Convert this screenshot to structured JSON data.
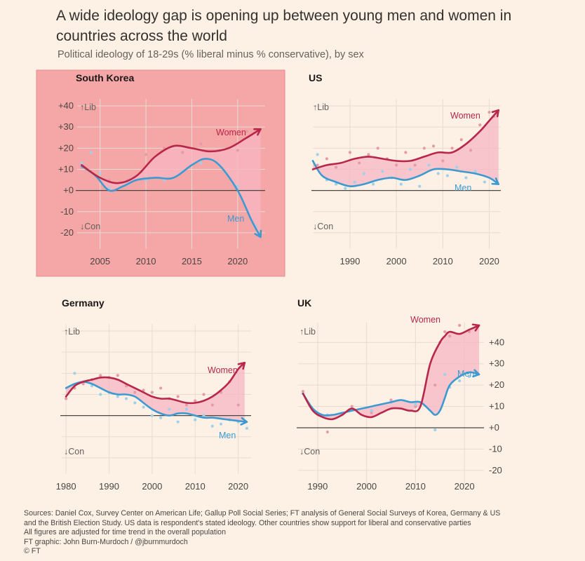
{
  "header": {
    "title": "A wide ideology gap is opening up between young men and women in countries across the world",
    "subtitle": "Political ideology of 18-29s (% liberal minus % conservative), by sex"
  },
  "colors": {
    "women": "#b8264a",
    "men": "#3d9ad1",
    "gap_fill": "#f7b6c3",
    "highlight_bg": "#f5a6a6",
    "highlight_border": "#e88a8a",
    "point_women": "#e59aa6",
    "point_men": "#9fd0ea"
  },
  "labels": {
    "lib": "↑Lib",
    "con": "↓Con",
    "women": "Women",
    "men": "Men"
  },
  "chart_data": [
    {
      "type": "line",
      "title": "South Korea",
      "highlight": true,
      "xlim": [
        2002.5,
        2023
      ],
      "ylim": [
        -25,
        42
      ],
      "xticks": [
        2005,
        2010,
        2015,
        2020
      ],
      "yticks": [
        40,
        30,
        20,
        10,
        0,
        -10,
        -20
      ],
      "ytick_labels": [
        "+40",
        "+30",
        "+20",
        "+10",
        "+0",
        "-10",
        "-20"
      ],
      "series": [
        {
          "name": "Women",
          "x": [
            2003,
            2005,
            2007,
            2009,
            2011,
            2013,
            2015,
            2017,
            2019,
            2021,
            2022.5
          ],
          "y": [
            12,
            6,
            3.5,
            7,
            16,
            21,
            20,
            18.5,
            20,
            25,
            29
          ]
        },
        {
          "name": "Men",
          "x": [
            2003,
            2004.5,
            2006,
            2007.5,
            2009,
            2011,
            2013,
            2015,
            2016.5,
            2018,
            2020,
            2021.5,
            2022.5
          ],
          "y": [
            11.5,
            7,
            0,
            2,
            5,
            6,
            6,
            12,
            15,
            12,
            0,
            -14,
            -22
          ]
        }
      ],
      "points": {
        "women": [
          [
            2003,
            11
          ],
          [
            2004,
            9
          ],
          [
            2006,
            5
          ],
          [
            2008,
            5
          ],
          [
            2009.5,
            9
          ],
          [
            2010,
            17
          ],
          [
            2012,
            20
          ],
          [
            2014,
            18
          ],
          [
            2016,
            22
          ],
          [
            2018,
            19
          ],
          [
            2020,
            19
          ],
          [
            2021,
            28
          ],
          [
            2022,
            29
          ]
        ],
        "men": [
          [
            2003,
            13
          ],
          [
            2004,
            18
          ],
          [
            2005,
            8
          ],
          [
            2006,
            1
          ],
          [
            2008,
            3
          ],
          [
            2010,
            5
          ],
          [
            2012,
            5
          ],
          [
            2014,
            9
          ],
          [
            2016,
            13
          ],
          [
            2018,
            12
          ],
          [
            2020,
            2
          ],
          [
            2022,
            -17
          ]
        ]
      }
    },
    {
      "type": "line",
      "title": "US",
      "highlight": false,
      "xlim": [
        1982,
        2022.5
      ],
      "ylim": [
        -25,
        42
      ],
      "xticks": [
        1990,
        2000,
        2010,
        2020
      ],
      "yticks": [
        40,
        30,
        20,
        10,
        0,
        -10,
        -20
      ],
      "ytick_labels": [],
      "series": [
        {
          "name": "Women",
          "x": [
            1982,
            1985,
            1988,
            1991,
            1994,
            1997,
            2000,
            2003,
            2006,
            2009,
            2012,
            2015,
            2018,
            2020,
            2022
          ],
          "y": [
            10,
            12,
            13,
            15,
            16,
            15,
            14,
            14,
            16,
            18,
            18,
            22,
            28,
            33,
            38
          ]
        },
        {
          "name": "Men",
          "x": [
            1982,
            1984,
            1987,
            1990,
            1993,
            1996,
            1999,
            2002,
            2005,
            2008,
            2011,
            2014,
            2017,
            2020,
            2022
          ],
          "y": [
            14,
            7,
            4,
            2,
            3,
            5,
            6,
            5,
            7,
            10,
            10,
            9,
            8,
            6,
            3
          ]
        }
      ],
      "points": {
        "women": [
          [
            1983,
            12
          ],
          [
            1985,
            15
          ],
          [
            1987,
            11
          ],
          [
            1990,
            18
          ],
          [
            1992,
            13
          ],
          [
            1994,
            17
          ],
          [
            1996,
            20
          ],
          [
            1998,
            15
          ],
          [
            2000,
            12
          ],
          [
            2002,
            18
          ],
          [
            2004,
            12
          ],
          [
            2006,
            20
          ],
          [
            2008,
            21
          ],
          [
            2010,
            14
          ],
          [
            2012,
            20
          ],
          [
            2014,
            24
          ],
          [
            2016,
            19
          ],
          [
            2018,
            31
          ],
          [
            2020,
            37
          ],
          [
            2021,
            35
          ]
        ],
        "men": [
          [
            1983,
            17
          ],
          [
            1985,
            5
          ],
          [
            1987,
            3
          ],
          [
            1989,
            1
          ],
          [
            1991,
            4
          ],
          [
            1993,
            8
          ],
          [
            1995,
            3
          ],
          [
            1997,
            9
          ],
          [
            1999,
            6
          ],
          [
            2001,
            3
          ],
          [
            2003,
            10
          ],
          [
            2005,
            2
          ],
          [
            2007,
            12
          ],
          [
            2009,
            8
          ],
          [
            2011,
            7
          ],
          [
            2013,
            11
          ],
          [
            2015,
            6
          ],
          [
            2017,
            9
          ],
          [
            2019,
            4
          ]
        ]
      }
    },
    {
      "type": "line",
      "title": "Germany",
      "highlight": false,
      "xlim": [
        1979,
        2023
      ],
      "ylim": [
        -25,
        42
      ],
      "xticks": [
        1980,
        1990,
        2000,
        2010,
        2020
      ],
      "yticks": [
        40,
        30,
        20,
        10,
        0,
        -10,
        -20
      ],
      "ytick_labels": [],
      "series": [
        {
          "name": "Women",
          "x": [
            1980,
            1982,
            1984,
            1986,
            1988,
            1990,
            1992,
            1994,
            1996,
            1998,
            2000,
            2002,
            2004,
            2006,
            2008,
            2010,
            2012,
            2014,
            2016,
            2018,
            2020,
            2021.5
          ],
          "y": [
            9,
            14,
            16,
            17,
            18,
            18,
            17,
            15,
            13,
            11,
            9,
            8,
            8,
            7,
            6,
            6,
            7,
            9,
            12,
            16,
            22,
            25
          ]
        },
        {
          "name": "Men",
          "x": [
            1980,
            1982,
            1984,
            1986,
            1988,
            1990,
            1992,
            1994,
            1996,
            1998,
            2000,
            2002,
            2004,
            2006,
            2008,
            2010,
            2012,
            2014,
            2016,
            2018,
            2020,
            2022
          ],
          "y": [
            13,
            15,
            16,
            15,
            13,
            11,
            10,
            10,
            9,
            6,
            3,
            1,
            0,
            1,
            1,
            0,
            -1,
            -1,
            -1.5,
            -2,
            -2.5,
            -3
          ]
        }
      ],
      "points": {
        "women": [
          [
            1980,
            8
          ],
          [
            1982,
            13
          ],
          [
            1984,
            15
          ],
          [
            1986,
            17
          ],
          [
            1988,
            19
          ],
          [
            1990,
            18
          ],
          [
            1992,
            19
          ],
          [
            1994,
            14
          ],
          [
            1996,
            11
          ],
          [
            1998,
            12
          ],
          [
            2000,
            11
          ],
          [
            2002,
            13
          ],
          [
            2004,
            8
          ],
          [
            2006,
            9
          ],
          [
            2008,
            5
          ],
          [
            2010,
            7
          ],
          [
            2012,
            10
          ],
          [
            2014,
            5
          ],
          [
            2016,
            11
          ],
          [
            2018,
            16
          ],
          [
            2020,
            5
          ]
        ],
        "men": [
          [
            1982,
            20
          ],
          [
            1984,
            16
          ],
          [
            1986,
            14
          ],
          [
            1988,
            10
          ],
          [
            1990,
            11
          ],
          [
            1992,
            9
          ],
          [
            1994,
            8
          ],
          [
            1996,
            6
          ],
          [
            1998,
            4
          ],
          [
            2000,
            0
          ],
          [
            2002,
            -1
          ],
          [
            2004,
            3
          ],
          [
            2006,
            -3
          ],
          [
            2008,
            3
          ],
          [
            2010,
            -2
          ],
          [
            2012,
            0
          ],
          [
            2014,
            -5
          ],
          [
            2016,
            -4
          ],
          [
            2018,
            -2
          ],
          [
            2020,
            -3
          ],
          [
            2022,
            -6
          ]
        ]
      }
    },
    {
      "type": "line",
      "title": "UK",
      "highlight": false,
      "xlim": [
        1986,
        2024
      ],
      "ylim": [
        -25,
        48
      ],
      "xticks": [
        1990,
        2000,
        2010,
        2020
      ],
      "yticks": [
        40,
        30,
        20,
        10,
        0,
        -10,
        -20
      ],
      "ytick_labels": [
        "+40",
        "+30",
        "+20",
        "+10",
        "+0",
        "-10",
        "-20"
      ],
      "series": [
        {
          "name": "Women",
          "x": [
            1987,
            1989,
            1991,
            1993,
            1995,
            1997,
            1999,
            2001,
            2003,
            2005,
            2007,
            2009,
            2011,
            2013,
            2015,
            2016,
            2017,
            2019,
            2021,
            2023
          ],
          "y": [
            16,
            8,
            5,
            4,
            6,
            9,
            6,
            5,
            7,
            9,
            9,
            8,
            10,
            30,
            40,
            43,
            45,
            44,
            46,
            48
          ]
        },
        {
          "name": "Men",
          "x": [
            1987,
            1989,
            1991,
            1993,
            1995,
            1997,
            1999,
            2001,
            2003,
            2005,
            2007,
            2009,
            2011,
            2013,
            2014,
            2015,
            2016,
            2017,
            2019,
            2021,
            2023
          ],
          "y": [
            16,
            9,
            6,
            6,
            7,
            8,
            9,
            10,
            11,
            12,
            13,
            12,
            12,
            8,
            6,
            8,
            14,
            20,
            24,
            26,
            25
          ]
        }
      ],
      "points": {
        "women": [
          [
            1987,
            17
          ],
          [
            1992,
            -2
          ],
          [
            1997,
            10
          ],
          [
            2001,
            7
          ],
          [
            2005,
            13
          ],
          [
            2010,
            10
          ],
          [
            2014,
            20
          ],
          [
            2015,
            40
          ],
          [
            2016,
            45
          ],
          [
            2017,
            43
          ],
          [
            2019,
            48
          ],
          [
            2021,
            45
          ]
        ],
        "men": [
          [
            1987,
            16
          ],
          [
            1992,
            6
          ],
          [
            1997,
            9
          ],
          [
            2001,
            8
          ],
          [
            2005,
            12
          ],
          [
            2010,
            11
          ],
          [
            2014,
            -1
          ],
          [
            2016,
            25
          ],
          [
            2017,
            19
          ],
          [
            2019,
            22
          ],
          [
            2021,
            24
          ]
        ]
      }
    }
  ],
  "footer": {
    "lines": [
      "Sources: Daniel Cox, Survey Center on American Life; Gallup Poll Social Series; FT analysis of General Social Surveys of Korea, Germany & US",
      "and the British Election Study. US data is respondent's stated ideology. Other countries show support for liberal and conservative parties",
      "All figures are adjusted for time trend in the overall population",
      "FT graphic: John Burn-Murdoch / @jburnmurdoch",
      "© FT"
    ]
  }
}
